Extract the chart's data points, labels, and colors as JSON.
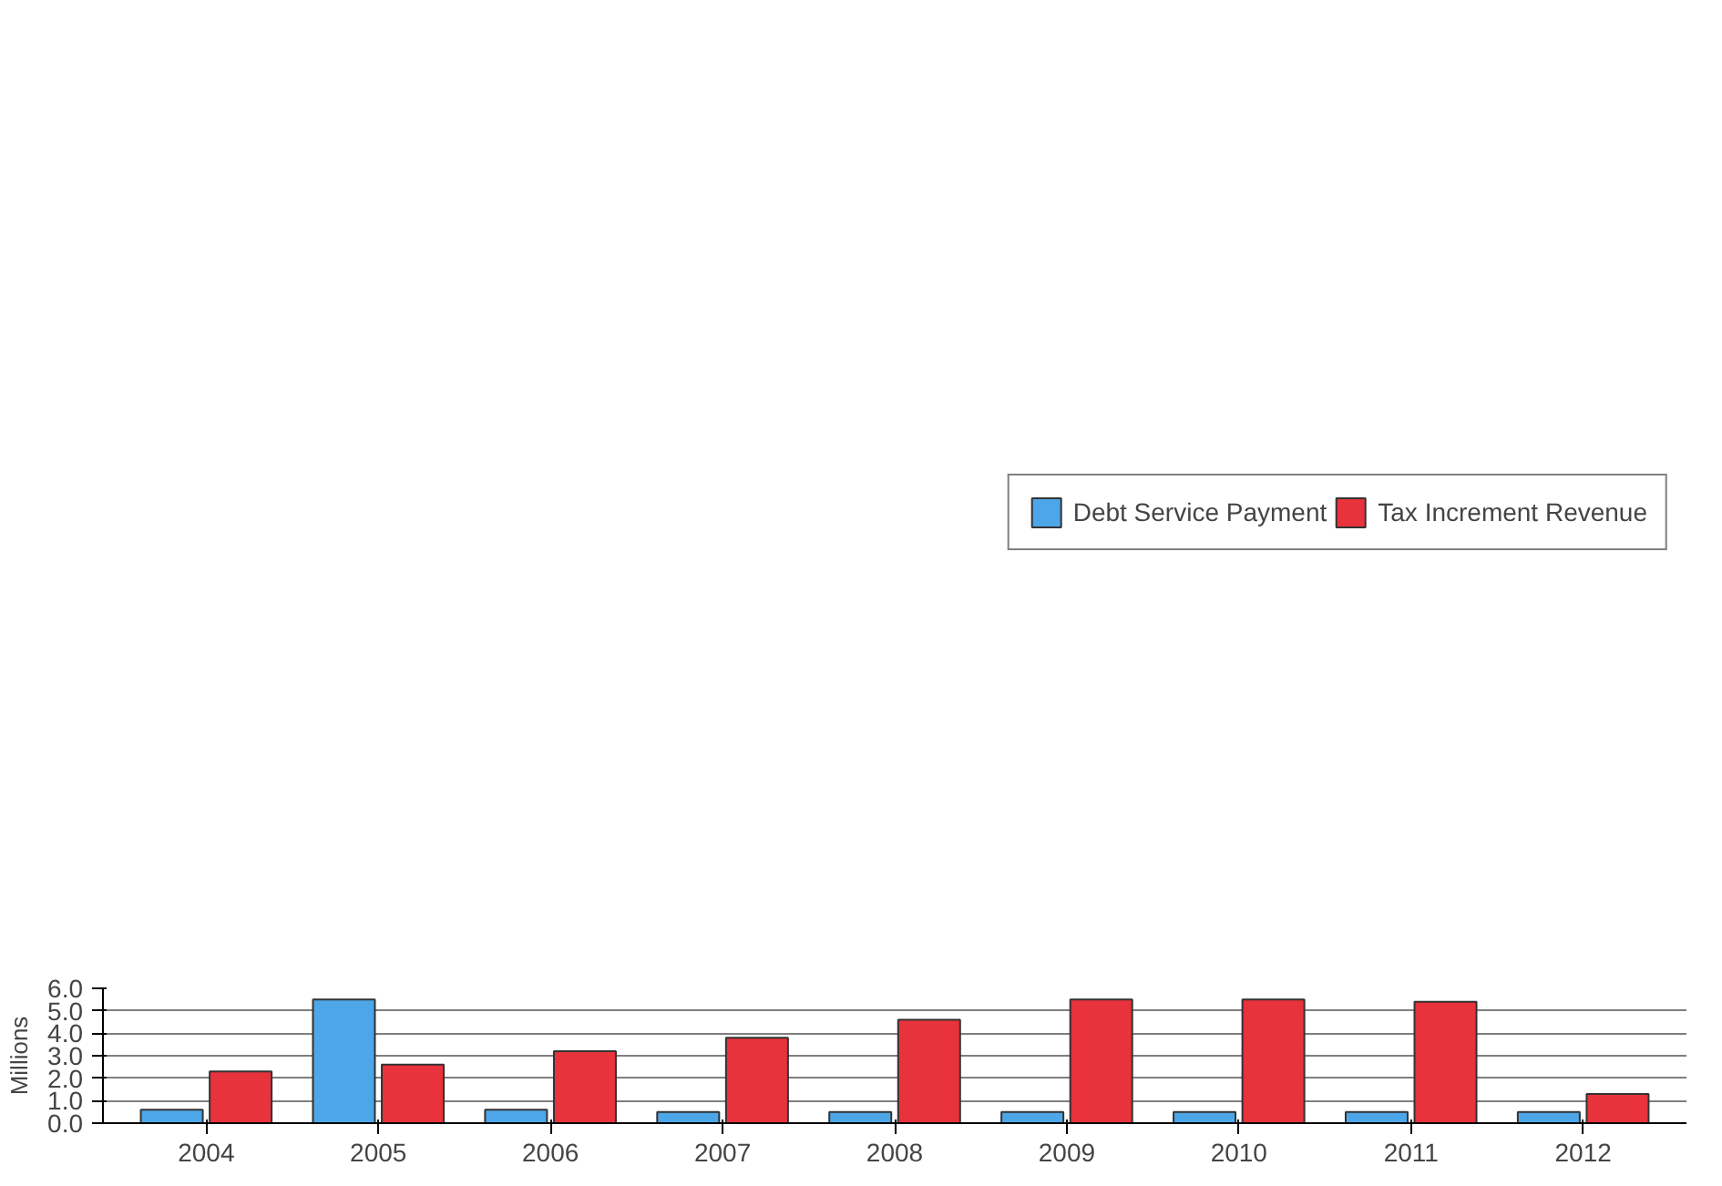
{
  "chart_data": {
    "type": "bar",
    "ylabel": "Millions",
    "categories": [
      "2004",
      "2005",
      "2006",
      "2007",
      "2008",
      "2009",
      "2010",
      "2011",
      "2012"
    ],
    "series": [
      {
        "name": "Debt Service Payment",
        "color": "#4da6e8",
        "values": [
          0.6,
          5.5,
          0.6,
          0.5,
          0.5,
          0.5,
          0.5,
          0.5,
          0.5
        ]
      },
      {
        "name": "Tax Increment Revenue",
        "color": "#e8323c",
        "values": [
          2.3,
          2.6,
          3.2,
          3.8,
          4.6,
          5.5,
          5.5,
          5.4,
          1.3
        ]
      }
    ],
    "ylim": [
      0,
      6
    ],
    "yticks": [
      {
        "value": 0,
        "label": "0.0"
      },
      {
        "value": 1,
        "label": "1.0"
      },
      {
        "value": 2,
        "label": "2.0"
      },
      {
        "value": 3,
        "label": "3.0"
      },
      {
        "value": 4,
        "label": "4.0"
      },
      {
        "value": 5,
        "label": "5.0"
      },
      {
        "value": 6,
        "label": "6.0"
      }
    ],
    "grid": "y",
    "legend": "top"
  }
}
